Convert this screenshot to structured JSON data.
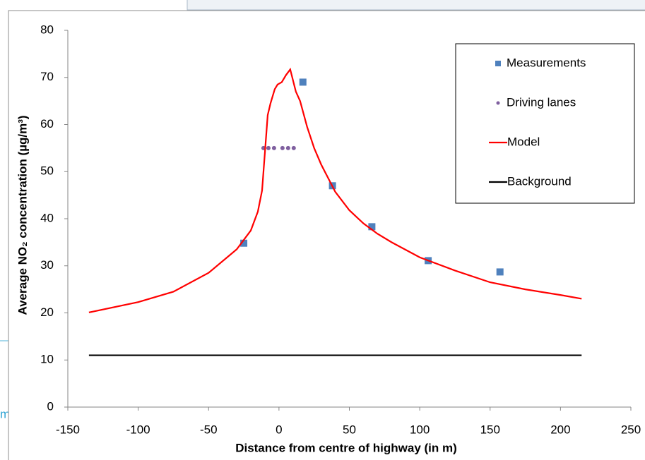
{
  "page_fragment": "m",
  "chart_data": {
    "type": "scatter",
    "xlabel": "Distance from centre of highway (in m)",
    "ylabel": "Average NO₂ concentration (µg/m³)",
    "xlim": [
      -150,
      250
    ],
    "xticks": [
      -150,
      -100,
      -50,
      0,
      50,
      100,
      150,
      200,
      250
    ],
    "ylim": [
      0,
      80
    ],
    "yticks": [
      0,
      10,
      20,
      30,
      40,
      50,
      60,
      70,
      80
    ],
    "legend": "upper right",
    "series": [
      {
        "name": "Measurements",
        "color": "#4f81bd",
        "marker": "square",
        "x": [
          -25,
          17,
          38,
          66,
          106,
          157
        ],
        "values": [
          34.8,
          69,
          47,
          38.3,
          31.1,
          28.7
        ]
      },
      {
        "name": "Driving lanes",
        "color": "#7f5f9f",
        "marker": "circle",
        "x": [
          -11,
          -7.5,
          -3.5,
          2.5,
          6.5,
          10.5
        ],
        "values": [
          55,
          55,
          55,
          55,
          55,
          55
        ]
      },
      {
        "name": "Model",
        "color": "#ff0000",
        "marker": "line",
        "x": [
          -135,
          -100,
          -75,
          -50,
          -30,
          -20,
          -15,
          -12,
          -10,
          -8,
          -6,
          -3,
          -1,
          2,
          5,
          8,
          12,
          15,
          20,
          25,
          30,
          40,
          50,
          60,
          70,
          80,
          100,
          125,
          150,
          175,
          200,
          215
        ],
        "values": [
          20.1,
          22.3,
          24.5,
          28.5,
          33.5,
          37.5,
          41.5,
          46,
          54,
          62,
          64.5,
          67.5,
          68.5,
          69,
          70.5,
          71.7,
          67,
          65,
          59.5,
          55,
          51.5,
          45.7,
          41.8,
          39,
          36.8,
          35,
          31.8,
          29,
          26.5,
          25,
          23.8,
          23
        ]
      },
      {
        "name": "Background",
        "color": "#000000",
        "marker": "line",
        "x": [
          -135,
          215
        ],
        "values": [
          11,
          11
        ]
      }
    ]
  }
}
